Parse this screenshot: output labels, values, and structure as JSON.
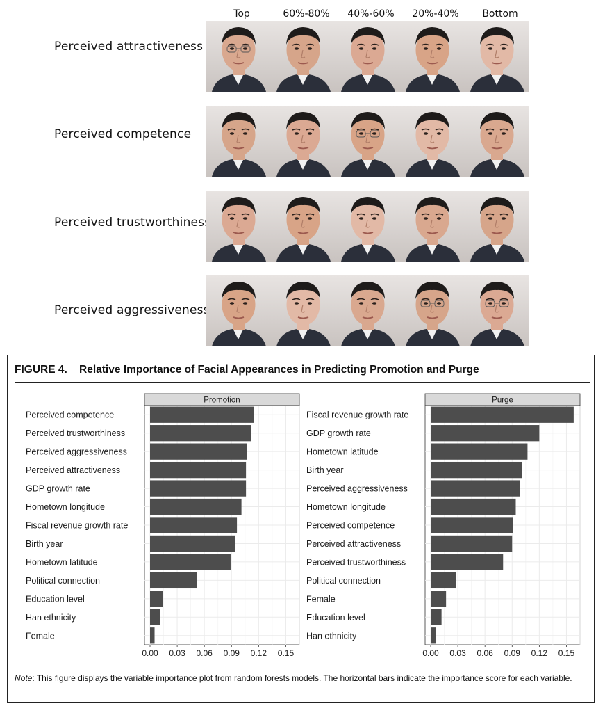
{
  "faces": {
    "column_headers": [
      "Top",
      "60%-80%",
      "40%-60%",
      "20%-40%",
      "Bottom"
    ],
    "row_labels": [
      "Perceived attractiveness",
      "Perceived competence",
      "Perceived trustworthiness",
      "Perceived aggressiveness"
    ]
  },
  "figure": {
    "title": "FIGURE 4.    Relative Importance of Facial Appearances in Predicting Promotion and Purge",
    "note_label": "Note",
    "note_text": ": This figure displays the variable importance plot from random forests models. The horizontal bars indicate the importance score for each variable."
  },
  "colors": {
    "bar": "#4d4d4d",
    "strip": "#d9d9d9",
    "grid": "#ebebeb"
  },
  "chart_data": [
    {
      "type": "bar",
      "orientation": "horizontal",
      "facet": "Promotion",
      "categories": [
        "Perceived competence",
        "Perceived trustworthiness",
        "Perceived aggressiveness",
        "Perceived attractiveness",
        "GDP growth rate",
        "Hometown longitude",
        "Fiscal revenue growth rate",
        "Birth year",
        "Hometown latitude",
        "Political connection",
        "Education level",
        "Han ethnicity",
        "Female"
      ],
      "values": [
        0.115,
        0.112,
        0.107,
        0.106,
        0.106,
        0.101,
        0.096,
        0.094,
        0.089,
        0.052,
        0.014,
        0.011,
        0.005
      ],
      "xlim": [
        0,
        0.165
      ],
      "xticks": [
        "0.00",
        "0.03",
        "0.06",
        "0.09",
        "0.12",
        "0.15"
      ],
      "grid": true
    },
    {
      "type": "bar",
      "orientation": "horizontal",
      "facet": "Purge",
      "categories": [
        "Fiscal revenue growth rate",
        "GDP growth rate",
        "Hometown latitude",
        "Birth year",
        "Perceived aggressiveness",
        "Hometown longitude",
        "Perceived competence",
        "Perceived attractiveness",
        "Perceived trustworthiness",
        "Political connection",
        "Female",
        "Education level",
        "Han ethnicity"
      ],
      "values": [
        0.158,
        0.12,
        0.107,
        0.101,
        0.099,
        0.094,
        0.091,
        0.09,
        0.08,
        0.028,
        0.017,
        0.012,
        0.006
      ],
      "xlim": [
        0,
        0.165
      ],
      "xticks": [
        "0.00",
        "0.03",
        "0.06",
        "0.09",
        "0.12",
        "0.15"
      ],
      "grid": true
    }
  ]
}
